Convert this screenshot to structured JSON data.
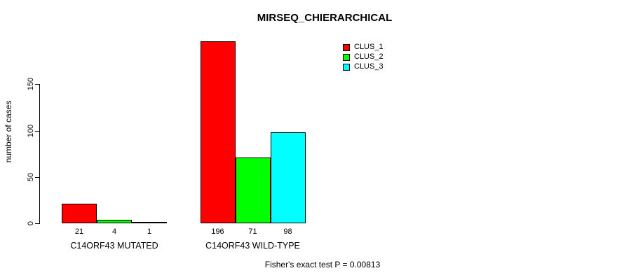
{
  "chart_data": {
    "type": "bar",
    "title": "MIRSEQ_CHIERARCHICAL",
    "ylabel": "number of cases",
    "yticks": [
      0,
      50,
      100,
      150
    ],
    "ylim": [
      0,
      205
    ],
    "grid": false,
    "legend_position": "top-right",
    "categories": [
      "C14ORF43 MUTATED",
      "C14ORF43 WILD-TYPE"
    ],
    "series": [
      {
        "name": "CLUS_1",
        "color": "#ff0000",
        "values": [
          21,
          196
        ]
      },
      {
        "name": "CLUS_2",
        "color": "#00ff00",
        "values": [
          4,
          71
        ]
      },
      {
        "name": "CLUS_3",
        "color": "#00ffff",
        "values": [
          1,
          98
        ]
      }
    ],
    "bar_value_labels_shown": true,
    "footer": "Fisher's exact test P = 0.00813",
    "colors": {
      "background": "#ffffff",
      "axis": "#000000",
      "text": "#000000"
    }
  }
}
